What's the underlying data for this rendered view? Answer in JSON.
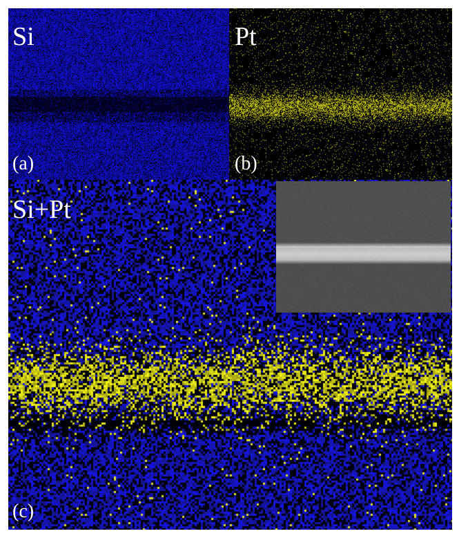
{
  "panels": {
    "a": {
      "element_label": "Si",
      "letter": "(a)",
      "color": "#1a1ad2",
      "map": "Si elemental map"
    },
    "b": {
      "element_label": "Pt",
      "letter": "(b)",
      "color": "#c8c81e",
      "map": "Pt elemental map"
    },
    "c": {
      "element_label": "Si+Pt",
      "letter": "(c)",
      "colors": [
        "#1c1ce6",
        "#e6e62a"
      ],
      "inset": "SEM cross-section"
    }
  }
}
